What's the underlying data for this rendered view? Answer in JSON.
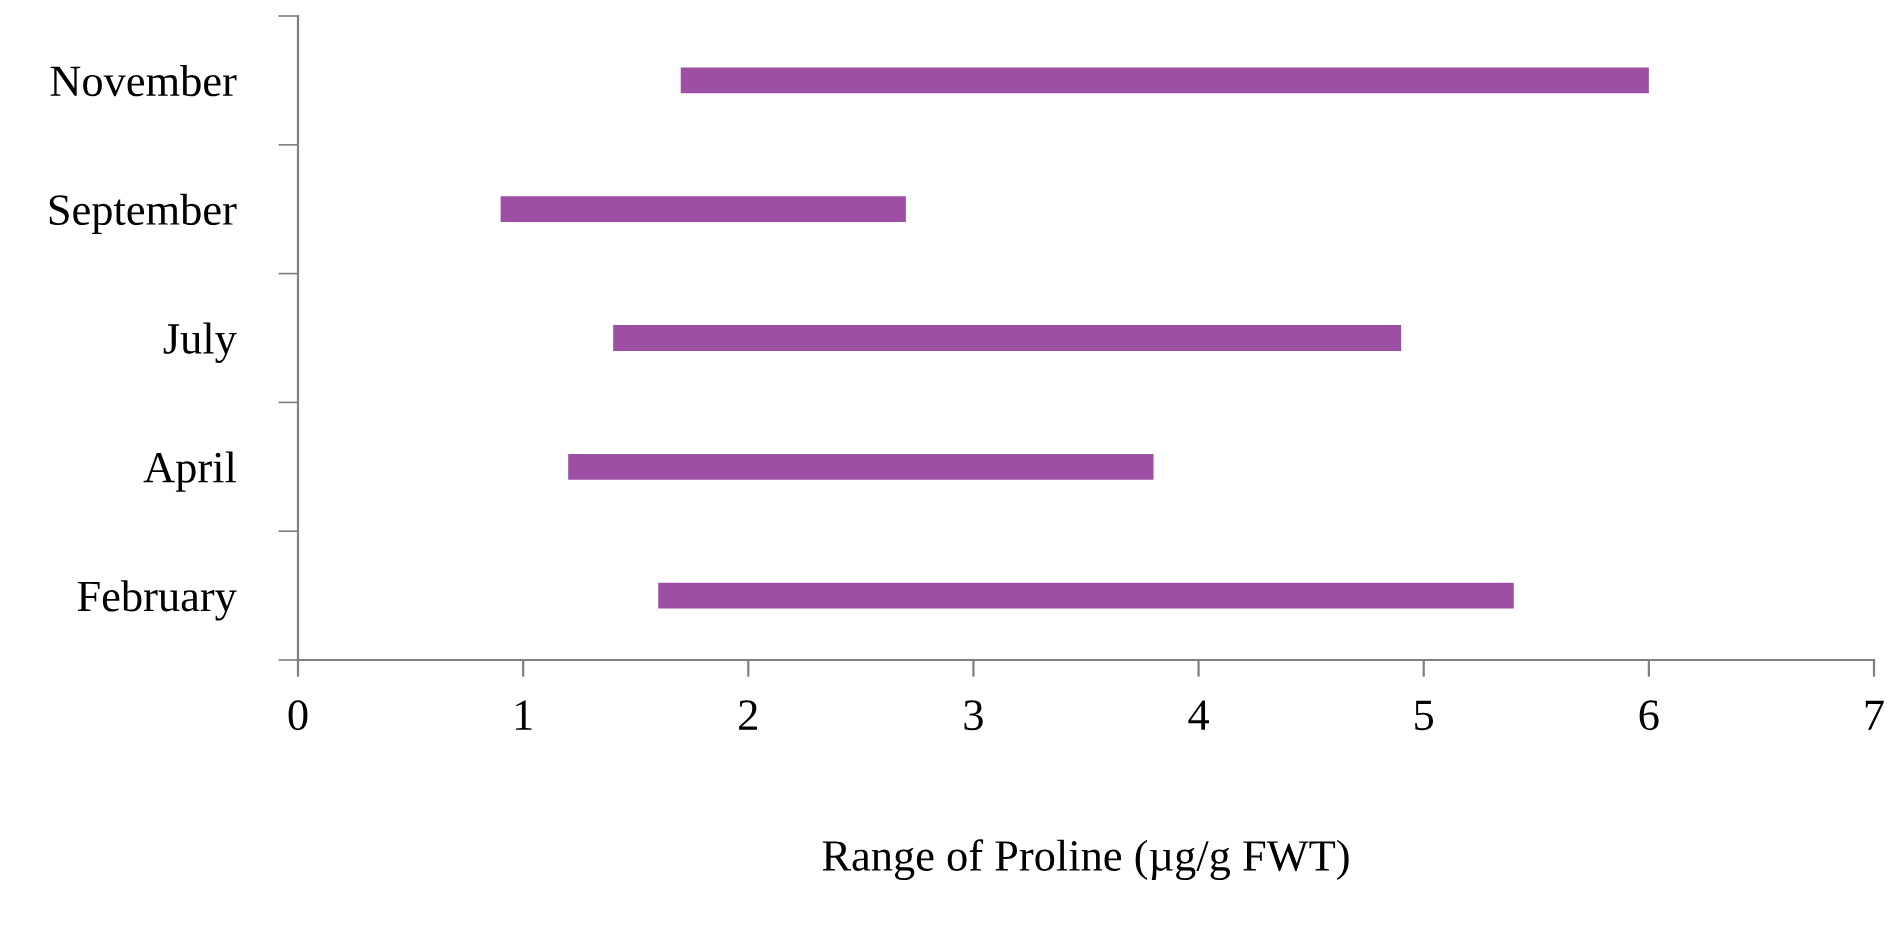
{
  "chart_data": {
    "type": "bar",
    "orientation": "horizontal",
    "xlabel": "Range of Proline (µg/g FWT)",
    "categories": [
      "November",
      "September",
      "July",
      "April",
      "February"
    ],
    "base": [
      1.7,
      0.9,
      1.4,
      1.2,
      1.6
    ],
    "values": [
      4.3,
      1.8,
      3.5,
      2.6,
      3.8
    ],
    "color": "#9c4fa3",
    "xlim": [
      0,
      7
    ],
    "xticks": [
      0,
      1,
      2,
      3,
      4,
      5,
      6,
      7
    ],
    "grid": false,
    "legend": false
  }
}
